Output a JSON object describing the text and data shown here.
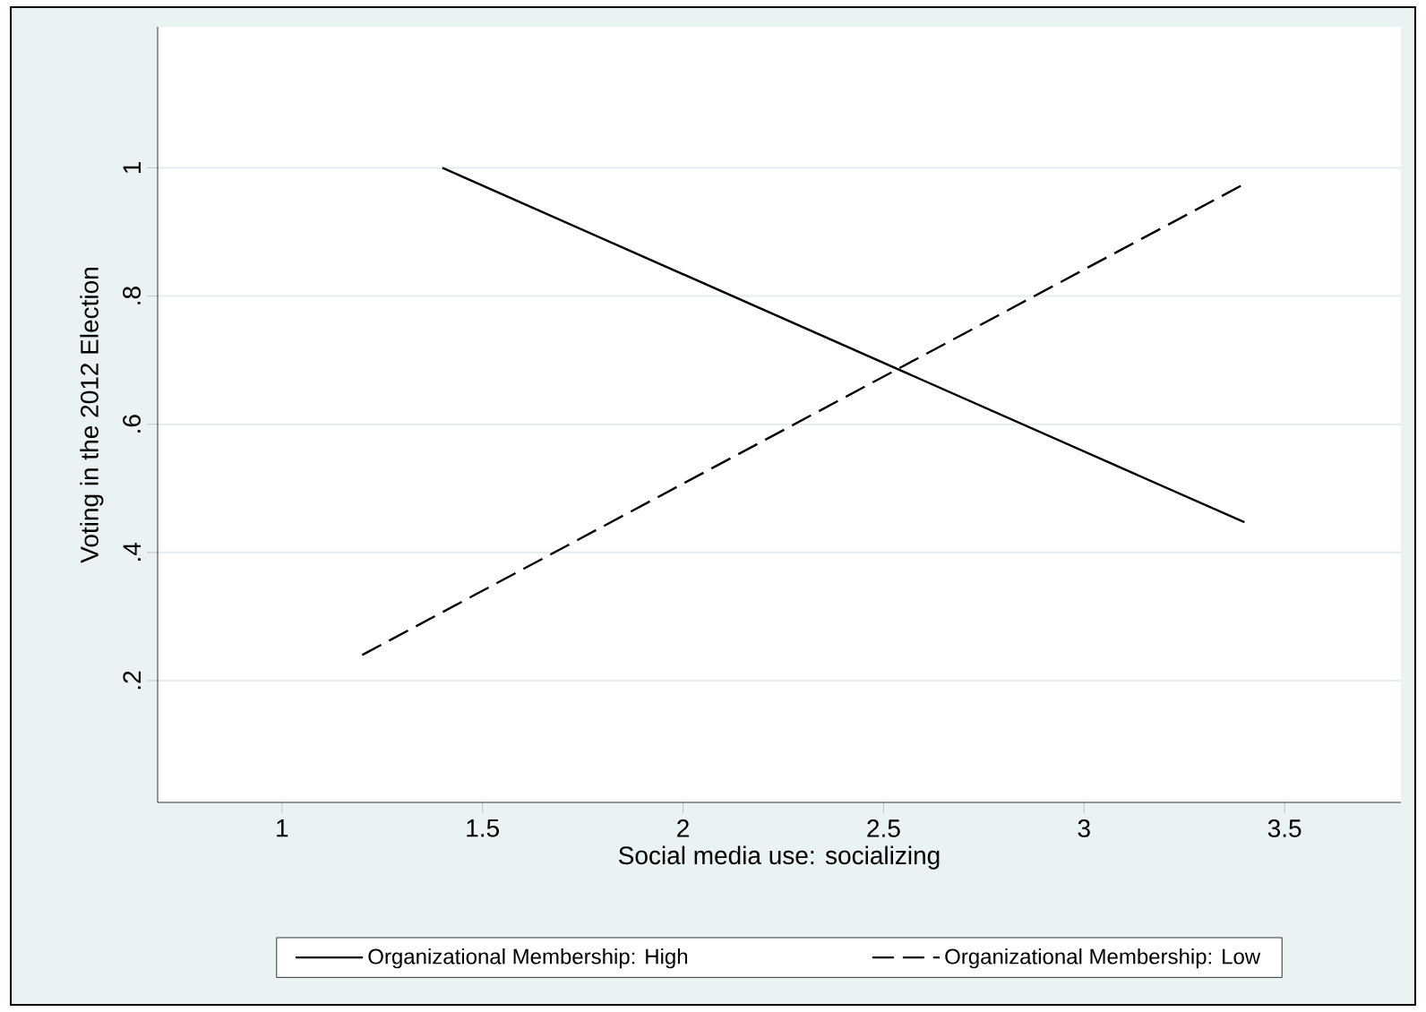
{
  "chart_data": {
    "type": "line",
    "xlabel": "Social media use: socializing",
    "ylabel": "Voting in the 2012 Election",
    "xlim": [
      0.69,
      3.79
    ],
    "ylim": [
      0.01,
      1.22
    ],
    "xticks": [
      1,
      1.5,
      2,
      2.5,
      3,
      3.5
    ],
    "yticks": [
      {
        "value": 0.2,
        "label": ".2"
      },
      {
        "value": 0.4,
        "label": ".4"
      },
      {
        "value": 0.6,
        "label": ".6"
      },
      {
        "value": 0.8,
        "label": ".8"
      },
      {
        "value": 1,
        "label": "1"
      }
    ],
    "grid": "y",
    "legend": "bottom",
    "series": [
      {
        "name": "Organizational Membership: High",
        "color": "#000000",
        "line_style": "solid",
        "x": [
          1.4,
          3.4
        ],
        "values": [
          1.0,
          0.447
        ]
      },
      {
        "name": "Organizational Membership: Low",
        "color": "#000000",
        "line_style": "dashed",
        "x": [
          1.2,
          3.4
        ],
        "values": [
          0.24,
          0.975
        ]
      }
    ]
  }
}
